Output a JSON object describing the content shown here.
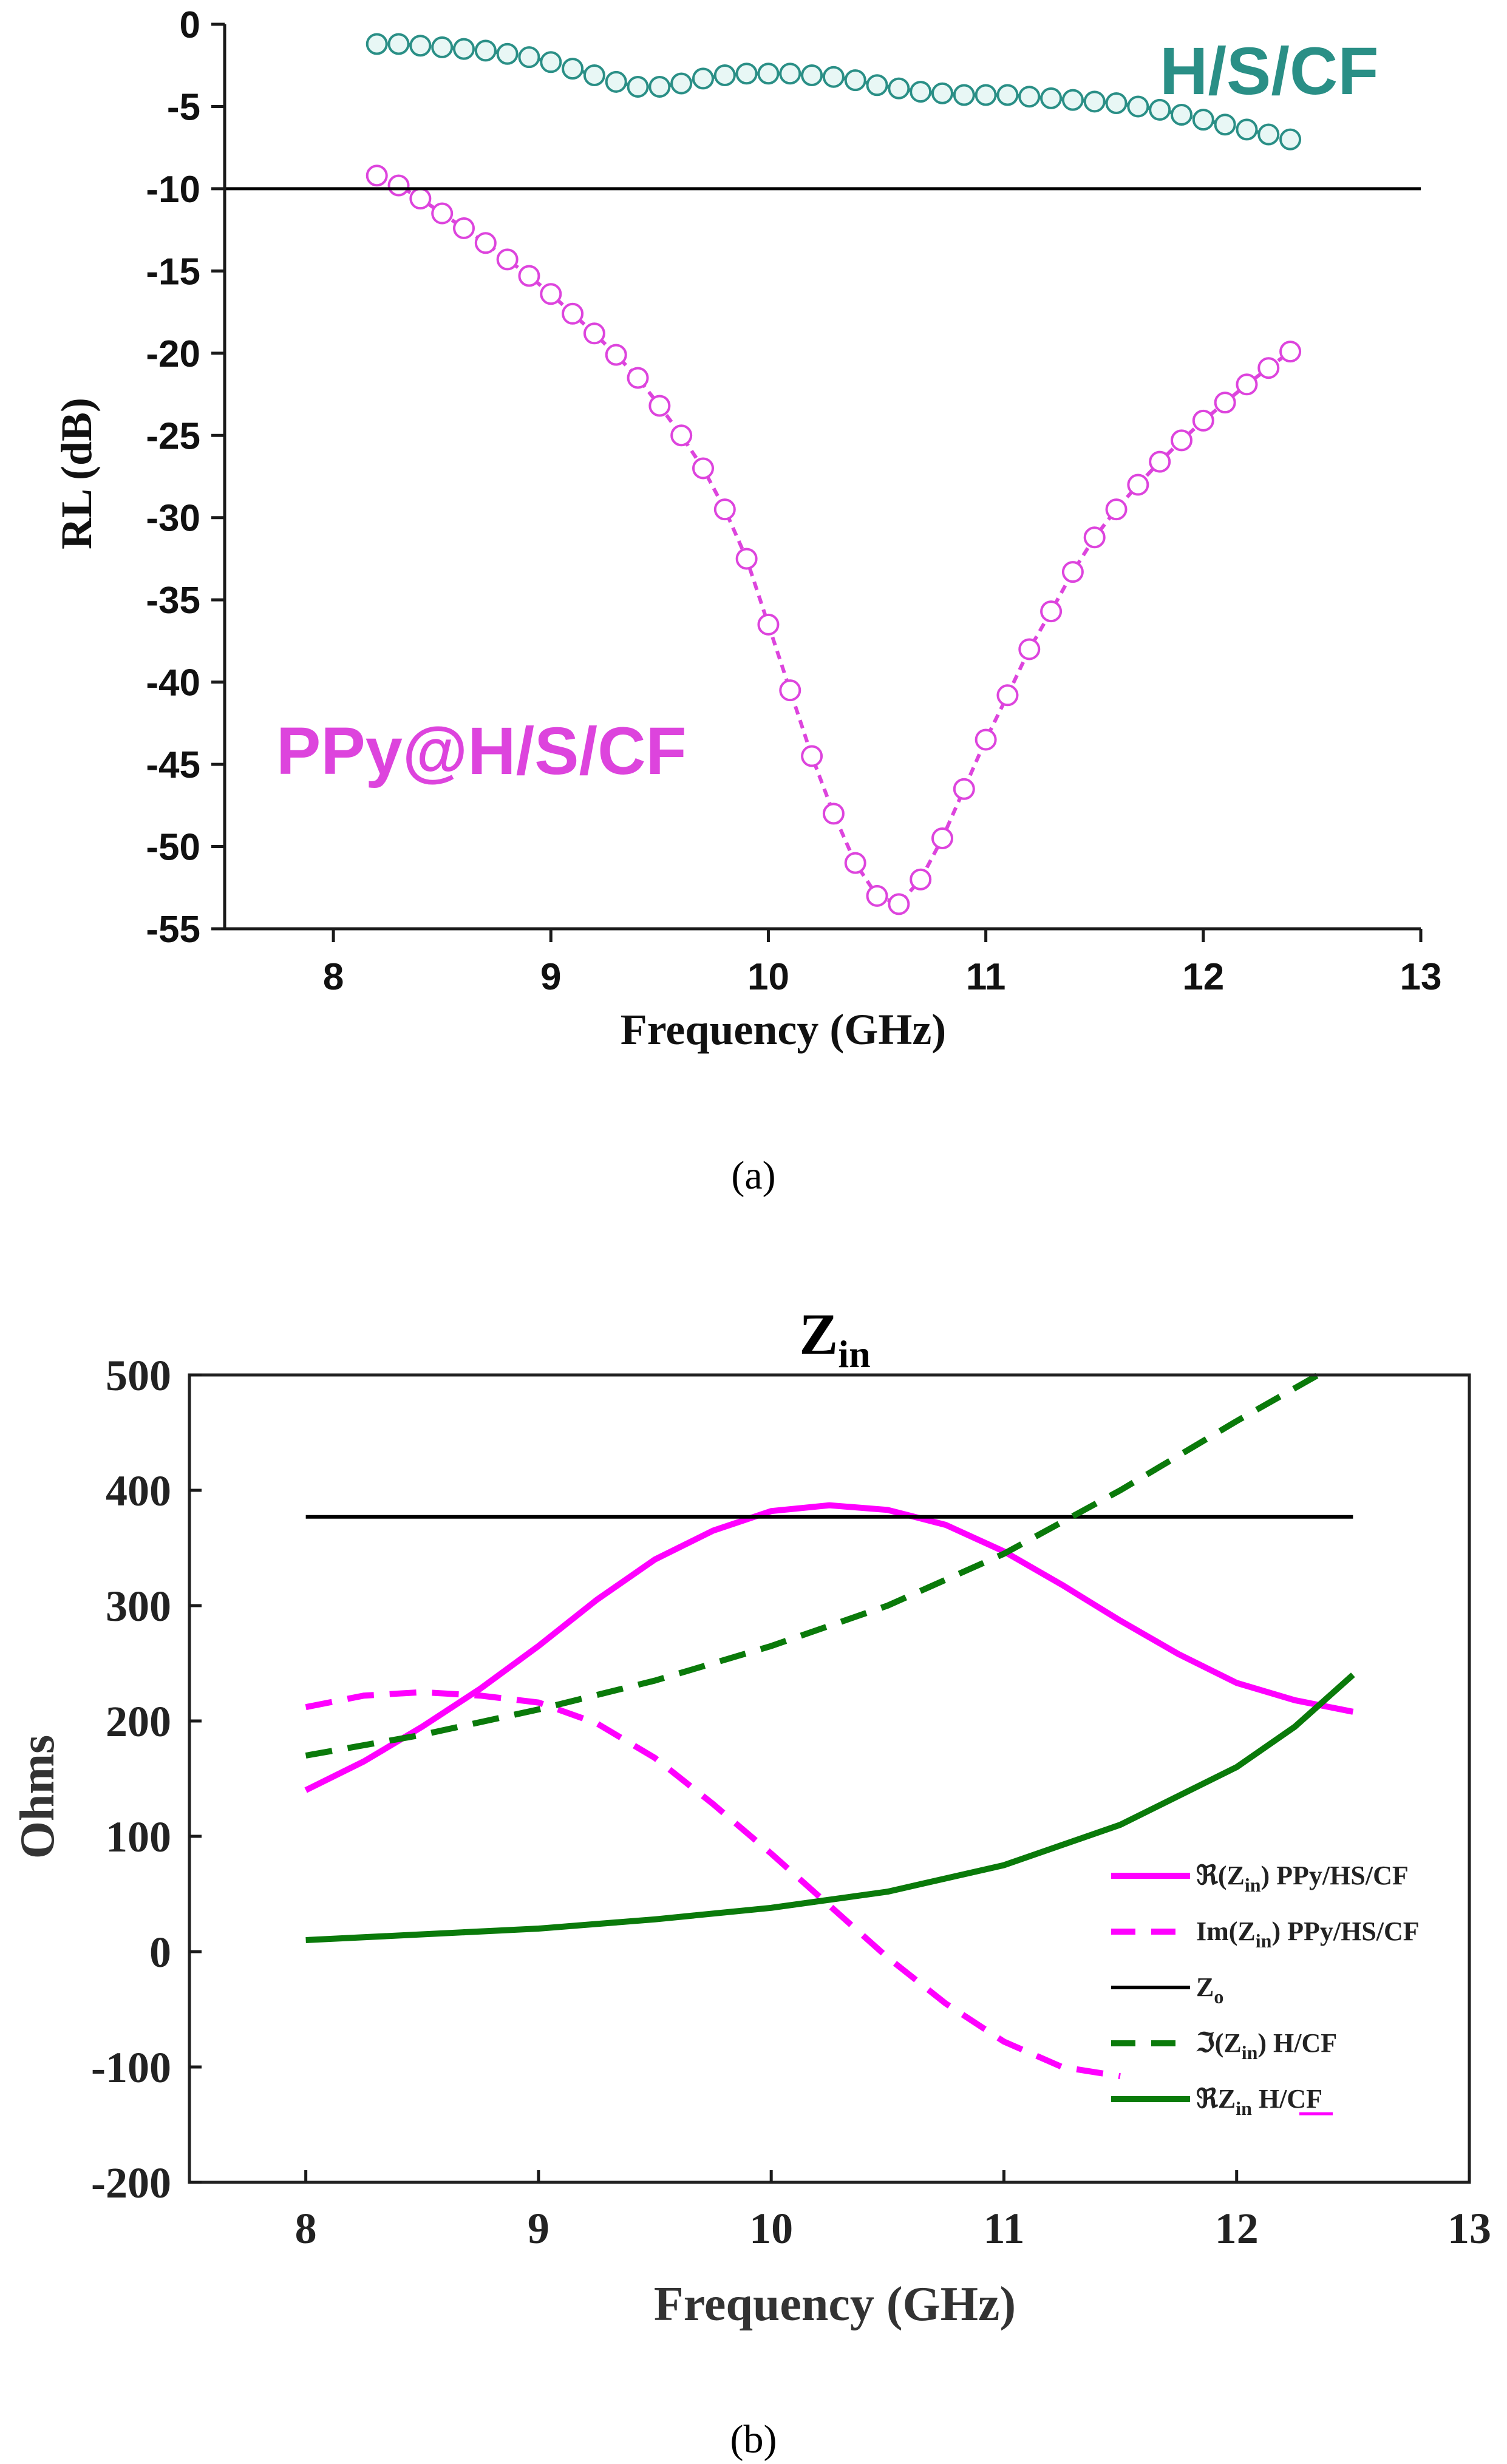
{
  "chart_data": [
    {
      "type": "scatter",
      "panel_caption": "(a)",
      "xlabel": "Frequency (GHz)",
      "ylabel": "RL (dB)",
      "xlim": [
        7.5,
        13
      ],
      "ylim": [
        -55,
        0
      ],
      "xticks": [
        "8",
        "9",
        "10",
        "11",
        "12",
        "13"
      ],
      "yticks": [
        "0",
        "-5",
        "-10",
        "-15",
        "-20",
        "-25",
        "-30",
        "-35",
        "-40",
        "-45",
        "-50",
        "-55"
      ],
      "reference_line": {
        "y": -10,
        "color": "#000000"
      },
      "series": [
        {
          "name": "H/S/CF",
          "color": "#2a8f86",
          "marker_fill": "#e8f7f5",
          "x": [
            8.2,
            8.3,
            8.4,
            8.5,
            8.6,
            8.7,
            8.8,
            8.9,
            9.0,
            9.1,
            9.2,
            9.3,
            9.4,
            9.5,
            9.6,
            9.7,
            9.8,
            9.9,
            10.0,
            10.1,
            10.2,
            10.3,
            10.4,
            10.5,
            10.6,
            10.7,
            10.8,
            10.9,
            11.0,
            11.1,
            11.2,
            11.3,
            11.4,
            11.5,
            11.6,
            11.7,
            11.8,
            11.9,
            12.0,
            12.1,
            12.2,
            12.3,
            12.4
          ],
          "y": [
            -1.2,
            -1.2,
            -1.3,
            -1.4,
            -1.5,
            -1.6,
            -1.8,
            -2.0,
            -2.3,
            -2.7,
            -3.1,
            -3.5,
            -3.8,
            -3.8,
            -3.6,
            -3.3,
            -3.1,
            -3.0,
            -3.0,
            -3.0,
            -3.1,
            -3.2,
            -3.4,
            -3.7,
            -3.9,
            -4.1,
            -4.2,
            -4.3,
            -4.3,
            -4.3,
            -4.4,
            -4.5,
            -4.6,
            -4.7,
            -4.8,
            -5.0,
            -5.2,
            -5.5,
            -5.8,
            -6.1,
            -6.4,
            -6.7,
            -7.0
          ]
        },
        {
          "name": "PPy@H/S/CF",
          "color": "#dd44dd",
          "marker_fill": "#ffffff",
          "x": [
            8.2,
            8.3,
            8.4,
            8.5,
            8.6,
            8.7,
            8.8,
            8.9,
            9.0,
            9.1,
            9.2,
            9.3,
            9.4,
            9.5,
            9.6,
            9.7,
            9.8,
            9.9,
            10.0,
            10.1,
            10.2,
            10.3,
            10.4,
            10.5,
            10.6,
            10.7,
            10.8,
            10.9,
            11.0,
            11.1,
            11.2,
            11.3,
            11.4,
            11.5,
            11.6,
            11.7,
            11.8,
            11.9,
            12.0,
            12.1,
            12.2,
            12.3,
            12.4
          ],
          "y": [
            -9.2,
            -9.8,
            -10.6,
            -11.5,
            -12.4,
            -13.3,
            -14.3,
            -15.3,
            -16.4,
            -17.6,
            -18.8,
            -20.1,
            -21.5,
            -23.2,
            -25.0,
            -27.0,
            -29.5,
            -32.5,
            -36.5,
            -40.5,
            -44.5,
            -48.0,
            -51.0,
            -53.0,
            -53.5,
            -52.0,
            -49.5,
            -46.5,
            -43.5,
            -40.8,
            -38.0,
            -35.7,
            -33.3,
            -31.2,
            -29.5,
            -28.0,
            -26.6,
            -25.3,
            -24.1,
            -23.0,
            -21.9,
            -20.9,
            -19.9
          ]
        }
      ]
    },
    {
      "type": "line",
      "panel_caption": "(b)",
      "title": "Z",
      "title_sub": "in",
      "xlabel": "Frequency (GHz)",
      "ylabel": "Ohms",
      "xlim": [
        7.5,
        13
      ],
      "ylim": [
        -200,
        500
      ],
      "xticks": [
        "8",
        "9",
        "10",
        "11",
        "12",
        "13"
      ],
      "yticks": [
        "-200",
        "-100",
        "0",
        "100",
        "200",
        "300",
        "400",
        "500"
      ],
      "series": [
        {
          "name": "ℜ(Z",
          "name_sub": "in",
          "name_tail": ") PPy/HS/CF",
          "color": "#ff00ff",
          "dash": "solid",
          "x": [
            8.0,
            8.25,
            8.5,
            8.75,
            9.0,
            9.25,
            9.5,
            9.75,
            10.0,
            10.25,
            10.5,
            10.75,
            11.0,
            11.25,
            11.5,
            11.75,
            12.0,
            12.25,
            12.5
          ],
          "y": [
            140,
            165,
            195,
            228,
            265,
            305,
            340,
            365,
            382,
            387,
            383,
            370,
            347,
            318,
            287,
            258,
            233,
            218,
            208
          ]
        },
        {
          "name": "Im(Z",
          "name_sub": "in",
          "name_tail": ") PPy/HS/CF",
          "color": "#ff00ff",
          "dash": "dashed",
          "x": [
            8.0,
            8.25,
            8.5,
            8.75,
            9.0,
            9.25,
            9.5,
            9.75,
            10.0,
            10.25,
            10.5,
            10.75,
            11.0,
            11.25,
            11.5
          ],
          "y": [
            212,
            222,
            225,
            222,
            216,
            198,
            168,
            128,
            85,
            40,
            -5,
            -45,
            -78,
            -100,
            -108
          ]
        },
        {
          "name": "Z",
          "name_sub": "o",
          "name_tail": "",
          "color": "#000000",
          "dash": "solid",
          "x": [
            8.0,
            12.5
          ],
          "y": [
            377,
            377
          ]
        },
        {
          "name": "ℑ(Z",
          "name_sub": "in",
          "name_tail": ") H/CF",
          "color": "#0a7a0a",
          "dash": "dashed",
          "x": [
            8.0,
            8.5,
            9.0,
            9.5,
            10.0,
            10.5,
            11.0,
            11.5,
            12.0,
            12.35
          ],
          "y": [
            170,
            188,
            210,
            235,
            265,
            300,
            345,
            400,
            460,
            500
          ]
        },
        {
          "name": "ℜZ",
          "name_sub": "in",
          "name_tail": " H/CF",
          "color": "#0a7a0a",
          "dash": "solid",
          "x": [
            8.0,
            8.5,
            9.0,
            9.5,
            10.0,
            10.5,
            11.0,
            11.5,
            12.0,
            12.25,
            12.5
          ],
          "y": [
            10,
            15,
            20,
            28,
            38,
            52,
            75,
            110,
            160,
            195,
            240
          ]
        }
      ]
    }
  ]
}
